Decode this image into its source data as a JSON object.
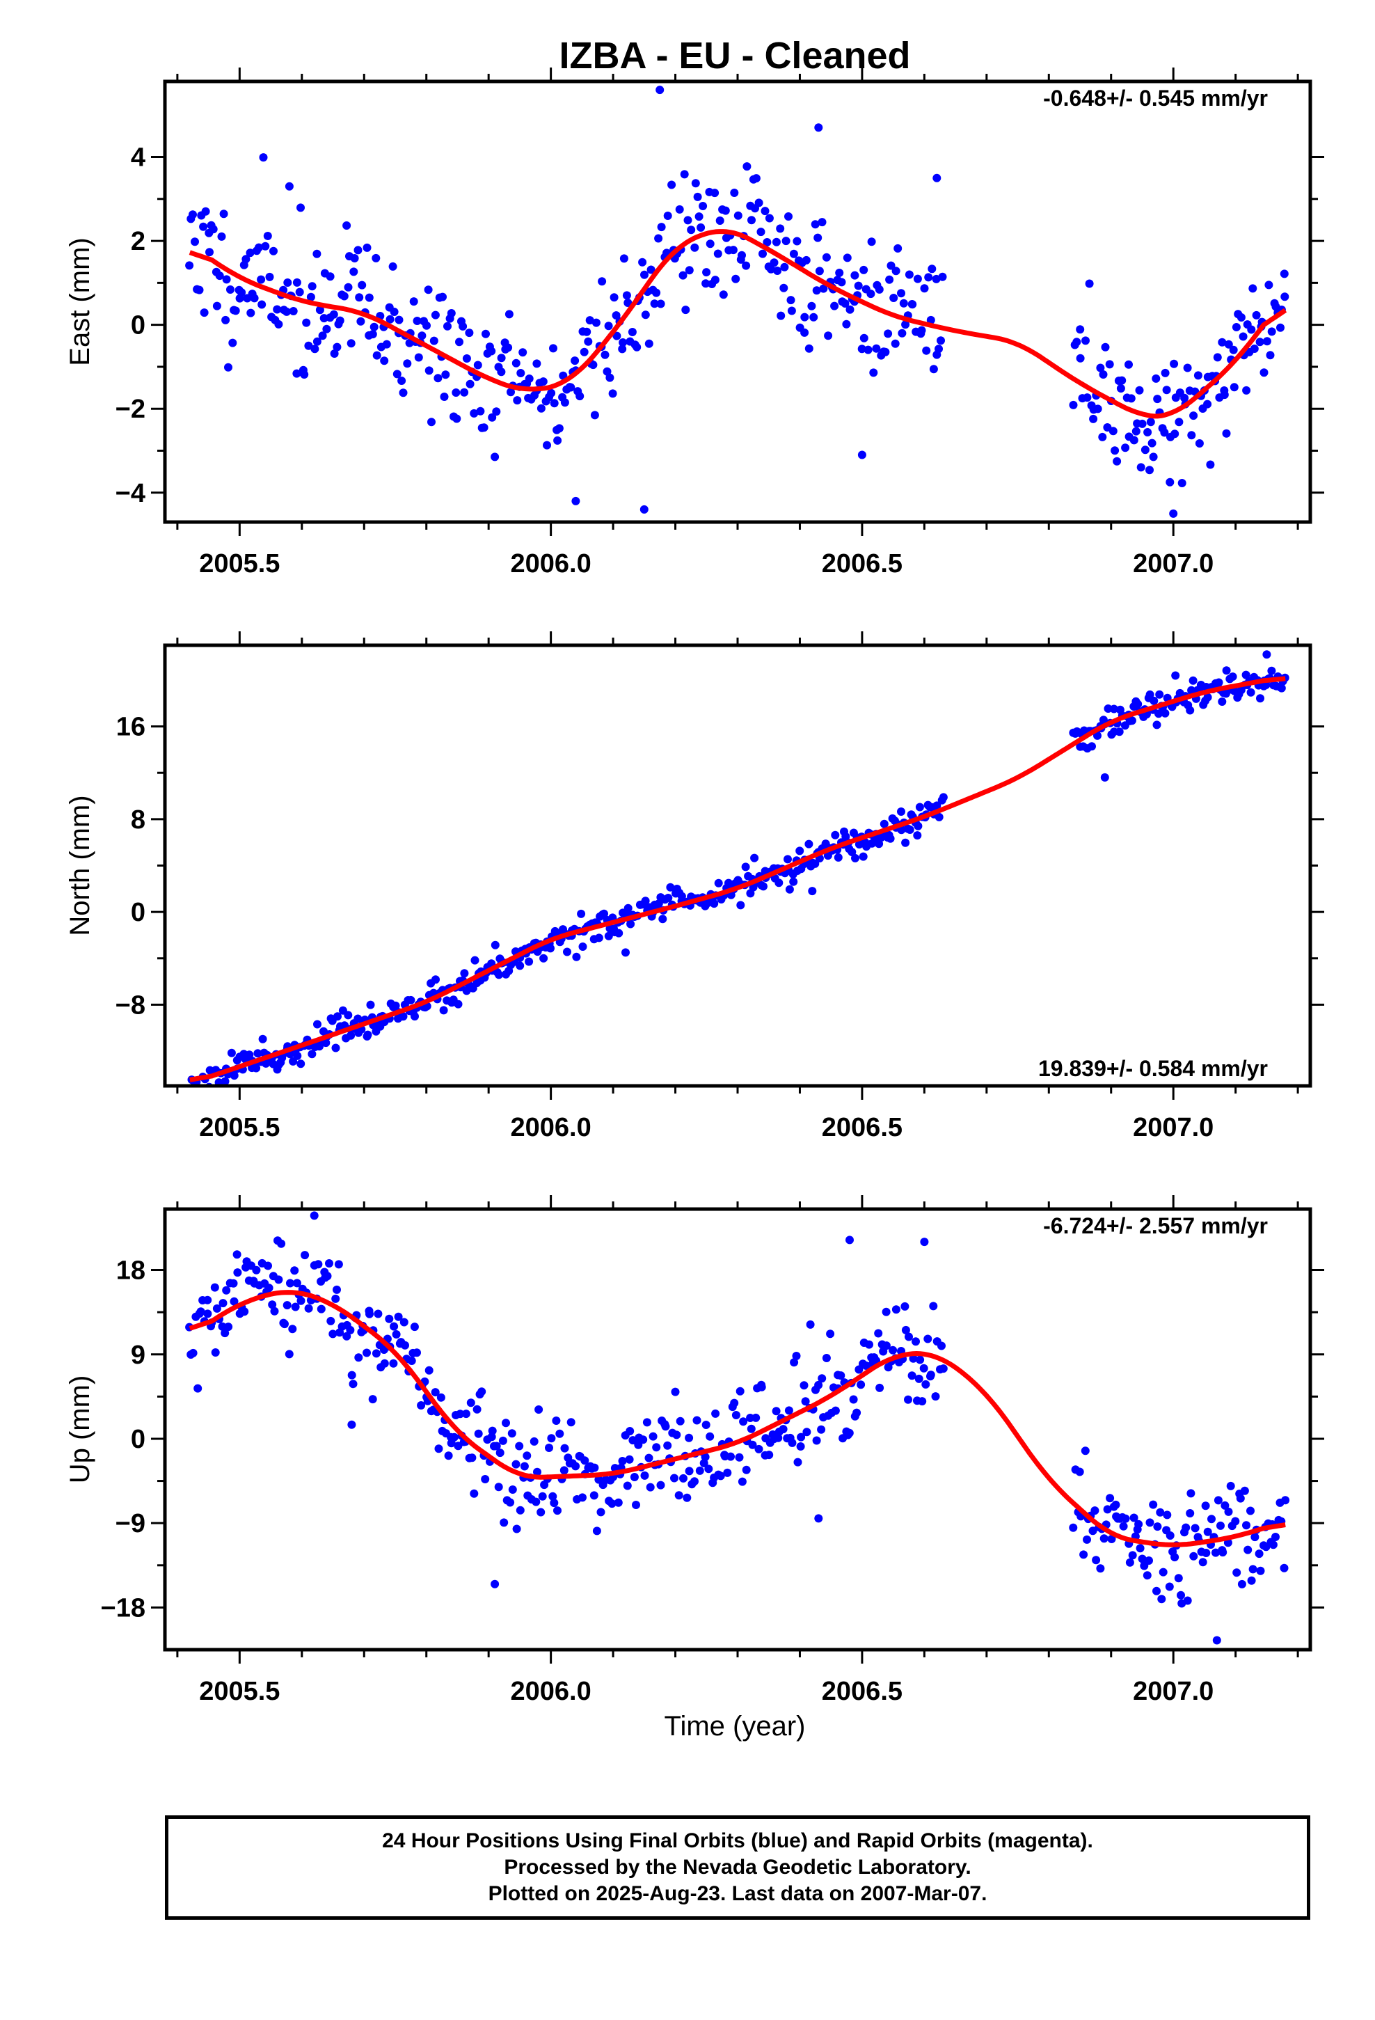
{
  "title": "IZBA  - EU - Cleaned",
  "colors": {
    "points": "#0000ff",
    "trend": "#ff0000",
    "frame": "#000000"
  },
  "x_axis": {
    "range": [
      2005.38,
      2007.22
    ],
    "ticks": [
      2005.5,
      2006.0,
      2006.5,
      2007.0
    ],
    "tick_labels": [
      "2005.5",
      "2006.0",
      "2006.5",
      "2007.0"
    ],
    "minor_ticks": [
      2005.4,
      2005.6,
      2005.7,
      2005.8,
      2005.9,
      2006.1,
      2006.2,
      2006.3,
      2006.4,
      2006.6,
      2006.7,
      2006.8,
      2006.9,
      2007.1,
      2007.2
    ],
    "label": "Time (year)"
  },
  "footer": {
    "line1": "24 Hour Positions Using Final Orbits (blue) and Rapid Orbits (magenta).",
    "line2": "Processed by the Nevada Geodetic Laboratory.",
    "line3": "Plotted on 2025-Aug-23. Last data on 2007-Mar-07."
  },
  "chart_data": [
    {
      "type": "scatter",
      "ylabel": "East (mm)",
      "rate_label": "-0.648+/- 0.545 mm/yr",
      "ylim": [
        -4.7,
        5.8
      ],
      "yticks": [
        4,
        2,
        0,
        -2,
        -4
      ],
      "ytick_labels": [
        "4",
        "2",
        "0",
        "−2",
        "−4"
      ],
      "trend": {
        "x": [
          2005.42,
          2005.5,
          2005.6,
          2005.7,
          2005.8,
          2005.9,
          2005.96,
          2006.03,
          2006.1,
          2006.2,
          2006.28,
          2006.35,
          2006.45,
          2006.55,
          2006.65,
          2006.75,
          2006.85,
          2006.95,
          2007.0,
          2007.1,
          2007.18
        ],
        "y": [
          1.9,
          1.1,
          0.55,
          0.3,
          -0.5,
          -1.3,
          -1.6,
          -1.4,
          -0.2,
          1.9,
          2.35,
          1.8,
          0.9,
          0.2,
          -0.15,
          -0.4,
          -1.4,
          -2.2,
          -2.2,
          -0.9,
          0.7
        ]
      },
      "points": {
        "n": 520,
        "noise": 0.8,
        "seed": 11,
        "segments": [
          [
            2005.42,
            2006.63
          ],
          [
            2006.84,
            2007.18
          ]
        ],
        "outliers": [
          [
            2006.175,
            5.6
          ],
          [
            2006.43,
            4.7
          ],
          [
            2006.15,
            -4.4
          ],
          [
            2006.04,
            -4.2
          ],
          [
            2006.5,
            -3.1
          ],
          [
            2007.0,
            -4.5
          ],
          [
            2005.58,
            3.3
          ],
          [
            2006.62,
            3.5
          ]
        ]
      }
    },
    {
      "type": "scatter",
      "ylabel": "North (mm)",
      "rate_label": "19.839+/- 0.584 mm/yr",
      "ylim": [
        -15,
        23
      ],
      "yticks": [
        16,
        8,
        0,
        -8
      ],
      "ytick_labels": [
        "16",
        "8",
        "0",
        "−8"
      ],
      "trend": {
        "x": [
          2005.42,
          2005.6,
          2005.8,
          2006.0,
          2006.2,
          2006.3,
          2006.45,
          2006.6,
          2006.75,
          2006.9,
          2007.05,
          2007.18
        ],
        "y": [
          -14.8,
          -11.5,
          -7.8,
          -2.3,
          0.5,
          2.0,
          5.5,
          8.2,
          11.5,
          16.5,
          19.0,
          20.3
        ]
      },
      "points": {
        "n": 520,
        "noise": 0.65,
        "seed": 23,
        "segments": [
          [
            2005.42,
            2006.63
          ],
          [
            2006.84,
            2007.18
          ]
        ],
        "outliers": [
          [
            2006.89,
            11.6
          ],
          [
            2006.42,
            1.8
          ],
          [
            2005.47,
            -13.9
          ],
          [
            2006.12,
            -3.5
          ],
          [
            2007.15,
            22.2
          ]
        ]
      }
    },
    {
      "type": "scatter",
      "ylabel": "Up (mm)",
      "rate_label": "-6.724+/- 2.557 mm/yr",
      "ylim": [
        -22.5,
        24.5
      ],
      "yticks": [
        18,
        9,
        0,
        -9,
        -18
      ],
      "ytick_labels": [
        "18",
        "9",
        "0",
        "−9",
        "−18"
      ],
      "trend": {
        "x": [
          2005.42,
          2005.5,
          2005.58,
          2005.65,
          2005.75,
          2005.85,
          2005.95,
          2006.1,
          2006.3,
          2006.45,
          2006.55,
          2006.62,
          2006.7,
          2006.8,
          2006.9,
          2007.0,
          2007.1,
          2007.18
        ],
        "y": [
          11,
          14.5,
          16,
          14.5,
          9.5,
          0.5,
          -4.2,
          -3.8,
          -0.5,
          4.5,
          9,
          9.2,
          5,
          -4.5,
          -10.5,
          -11.5,
          -10.5,
          -8.8
        ]
      },
      "points": {
        "n": 520,
        "noise": 2.6,
        "seed": 37,
        "segments": [
          [
            2005.42,
            2006.63
          ],
          [
            2006.84,
            2007.18
          ]
        ],
        "outliers": [
          [
            2005.62,
            23.8
          ],
          [
            2006.48,
            21.2
          ],
          [
            2005.68,
            1.5
          ],
          [
            2006.43,
            -8.5
          ],
          [
            2005.91,
            -15.5
          ],
          [
            2007.07,
            -21.5
          ],
          [
            2006.6,
            21.0
          ],
          [
            2006.2,
            5.0
          ]
        ]
      }
    }
  ]
}
